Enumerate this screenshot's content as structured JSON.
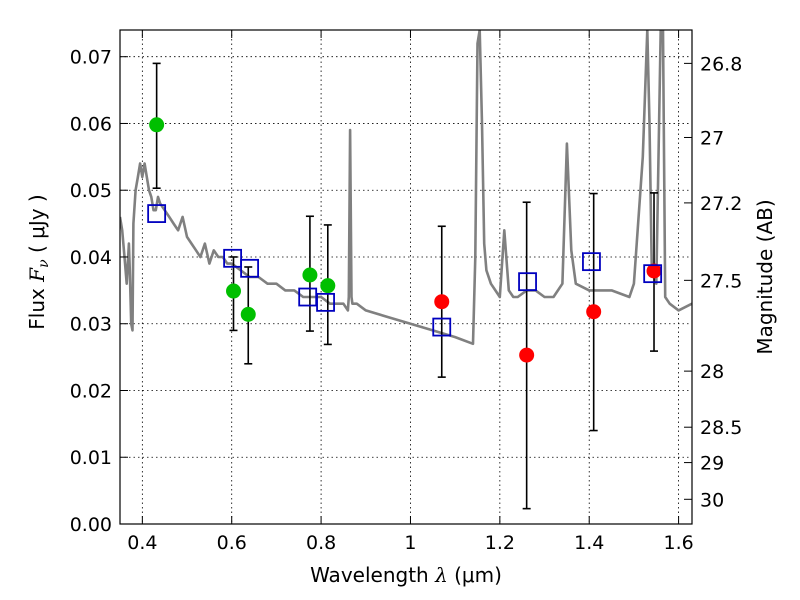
{
  "chart_data": {
    "type": "scatter",
    "xlabel": "Wavelength  λ (μm)",
    "xlabel_parts": {
      "main": "Wavelength  ",
      "symbol": "λ",
      "unit": " (μm)"
    },
    "ylabel": "Flux  Fν  ( μJy )",
    "ylabel_parts": {
      "main": "Flux  ",
      "symbol": "F",
      "sub": "ν",
      "unit": "  ( μJy )"
    },
    "y2label": "Magnitude (AB)",
    "xlim": [
      0.35,
      1.63
    ],
    "ylim": [
      0.0,
      0.074
    ],
    "grid": true,
    "x_ticks": [
      {
        "value": 0.4,
        "label": "0.4"
      },
      {
        "value": 0.6,
        "label": "0.6"
      },
      {
        "value": 0.8,
        "label": "0.8"
      },
      {
        "value": 1.0,
        "label": "1"
      },
      {
        "value": 1.2,
        "label": "1.2"
      },
      {
        "value": 1.4,
        "label": "1.4"
      },
      {
        "value": 1.6,
        "label": "1.6"
      }
    ],
    "y_ticks": [
      {
        "value": 0.0,
        "label": "0.00"
      },
      {
        "value": 0.01,
        "label": "0.01"
      },
      {
        "value": 0.02,
        "label": "0.02"
      },
      {
        "value": 0.03,
        "label": "0.03"
      },
      {
        "value": 0.04,
        "label": "0.04"
      },
      {
        "value": 0.05,
        "label": "0.05"
      },
      {
        "value": 0.06,
        "label": "0.06"
      },
      {
        "value": 0.07,
        "label": "0.07"
      }
    ],
    "y2_ticks": [
      {
        "label": "26.8",
        "flux": 0.069
      },
      {
        "label": "27",
        "flux": 0.0579
      },
      {
        "label": "27.2",
        "flux": 0.0481
      },
      {
        "label": "27.5",
        "flux": 0.0365
      },
      {
        "label": "28",
        "flux": 0.0229
      },
      {
        "label": "28.5",
        "flux": 0.0145
      },
      {
        "label": "29",
        "flux": 0.0092
      },
      {
        "label": "30",
        "flux": 0.0037
      }
    ],
    "series": [
      {
        "name": "model-spectrum",
        "kind": "line",
        "color": "#808080",
        "x": [
          0.35,
          0.355,
          0.36,
          0.365,
          0.37,
          0.372,
          0.375,
          0.378,
          0.38,
          0.385,
          0.39,
          0.395,
          0.4,
          0.405,
          0.41,
          0.415,
          0.42,
          0.425,
          0.43,
          0.435,
          0.44,
          0.45,
          0.46,
          0.47,
          0.48,
          0.49,
          0.5,
          0.51,
          0.52,
          0.53,
          0.54,
          0.55,
          0.56,
          0.57,
          0.58,
          0.59,
          0.6,
          0.62,
          0.64,
          0.66,
          0.68,
          0.7,
          0.72,
          0.74,
          0.76,
          0.78,
          0.8,
          0.82,
          0.84,
          0.85,
          0.86,
          0.862,
          0.865,
          0.868,
          0.87,
          0.88,
          0.9,
          0.95,
          1.0,
          1.05,
          1.1,
          1.14,
          1.145,
          1.15,
          1.155,
          1.16,
          1.165,
          1.17,
          1.18,
          1.19,
          1.2,
          1.21,
          1.22,
          1.23,
          1.24,
          1.26,
          1.28,
          1.3,
          1.32,
          1.34,
          1.35,
          1.36,
          1.37,
          1.4,
          1.45,
          1.49,
          1.5,
          1.52,
          1.53,
          1.535,
          1.54,
          1.545,
          1.55,
          1.56,
          1.565,
          1.57,
          1.58,
          1.6,
          1.63
        ],
        "y": [
          0.046,
          0.044,
          0.04,
          0.036,
          0.042,
          0.038,
          0.03,
          0.029,
          0.045,
          0.05,
          0.052,
          0.054,
          0.052,
          0.054,
          0.052,
          0.05,
          0.049,
          0.047,
          0.047,
          0.049,
          0.048,
          0.047,
          0.046,
          0.045,
          0.044,
          0.046,
          0.043,
          0.042,
          0.041,
          0.04,
          0.042,
          0.039,
          0.041,
          0.04,
          0.04,
          0.039,
          0.039,
          0.038,
          0.037,
          0.037,
          0.036,
          0.036,
          0.035,
          0.035,
          0.034,
          0.034,
          0.034,
          0.033,
          0.033,
          0.033,
          0.032,
          0.034,
          0.059,
          0.034,
          0.033,
          0.033,
          0.032,
          0.031,
          0.03,
          0.029,
          0.028,
          0.027,
          0.04,
          0.072,
          0.074,
          0.06,
          0.042,
          0.038,
          0.036,
          0.035,
          0.034,
          0.044,
          0.035,
          0.034,
          0.034,
          0.035,
          0.035,
          0.034,
          0.034,
          0.036,
          0.057,
          0.041,
          0.036,
          0.035,
          0.035,
          0.034,
          0.036,
          0.055,
          0.074,
          0.06,
          0.038,
          0.037,
          0.036,
          0.074,
          0.074,
          0.034,
          0.033,
          0.032,
          0.033
        ]
      },
      {
        "name": "green-observed",
        "kind": "marker",
        "marker": "circle",
        "color": "#00bf00",
        "x": [
          0.432,
          0.604,
          0.637,
          0.775,
          0.815
        ],
        "y": [
          0.0598,
          0.0349,
          0.0314,
          0.0373,
          0.0357
        ]
      },
      {
        "name": "red-observed",
        "kind": "marker",
        "marker": "circle",
        "color": "#ff0000",
        "x": [
          1.07,
          1.26,
          1.41,
          1.545
        ],
        "y": [
          0.0333,
          0.0253,
          0.0318,
          0.0379
        ]
      },
      {
        "name": "model-photometry",
        "kind": "marker",
        "marker": "square-open",
        "color": "#0000bf",
        "x": [
          0.432,
          0.602,
          0.64,
          0.77,
          0.81,
          1.07,
          1.262,
          1.405,
          1.542
        ],
        "y": [
          0.0465,
          0.0398,
          0.0383,
          0.034,
          0.0332,
          0.0295,
          0.0363,
          0.0393,
          0.0375
        ]
      },
      {
        "name": "error-bars",
        "kind": "errorbar",
        "color": "#000000",
        "x": [
          0.432,
          0.604,
          0.637,
          0.775,
          0.815,
          1.07,
          1.26,
          1.41,
          1.545
        ],
        "low": [
          0.0503,
          0.029,
          0.024,
          0.0289,
          0.0269,
          0.022,
          0.0023,
          0.014,
          0.0259
        ],
        "high": [
          0.069,
          0.04,
          0.0385,
          0.0461,
          0.0448,
          0.0446,
          0.0482,
          0.0495,
          0.0496
        ]
      }
    ]
  }
}
